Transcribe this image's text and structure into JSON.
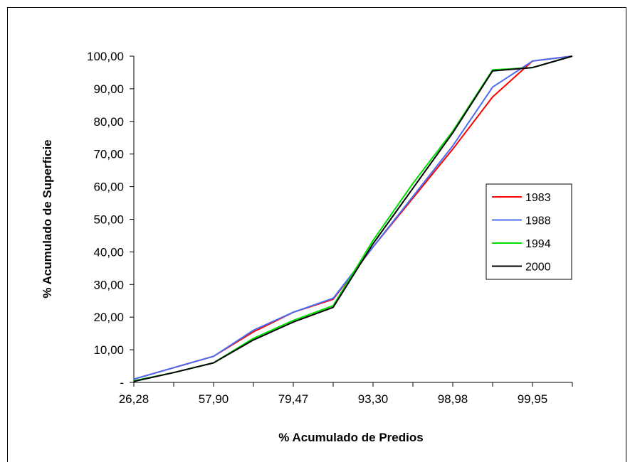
{
  "chart_data": {
    "type": "line",
    "title": "",
    "xlabel": "% Acumulado de Predios",
    "ylabel": "% Acumulado de Superficie",
    "categories": [
      "26,28",
      "",
      "57,90",
      "",
      "79,47",
      "",
      "93,30",
      "",
      "98,98",
      "",
      "99,95",
      ""
    ],
    "ylim": [
      0,
      100
    ],
    "yticks": [
      "-",
      "10,00",
      "20,00",
      "30,00",
      "40,00",
      "50,00",
      "60,00",
      "70,00",
      "80,00",
      "90,00",
      "100,00"
    ],
    "grid": false,
    "legend_position": "right",
    "series": [
      {
        "name": "1983",
        "color": "#ff0000",
        "values": [
          1.0,
          4.5,
          8.0,
          15.5,
          21.5,
          25.5,
          41.5,
          56.5,
          71.5,
          87.5,
          98.5,
          100.0
        ]
      },
      {
        "name": "1988",
        "color": "#4a6cf0",
        "values": [
          1.0,
          4.5,
          8.0,
          16.0,
          21.5,
          25.8,
          41.5,
          57.0,
          72.5,
          90.5,
          98.5,
          100.0
        ]
      },
      {
        "name": "1994",
        "color": "#00e000",
        "values": [
          0.5,
          3.0,
          6.0,
          13.5,
          19.0,
          23.5,
          43.5,
          61.0,
          77.0,
          95.8,
          96.5,
          100.0
        ]
      },
      {
        "name": "2000",
        "color": "#000000",
        "values": [
          0.3,
          3.0,
          6.0,
          13.0,
          18.5,
          23.0,
          42.5,
          59.5,
          76.5,
          95.5,
          96.5,
          100.0
        ]
      }
    ]
  }
}
